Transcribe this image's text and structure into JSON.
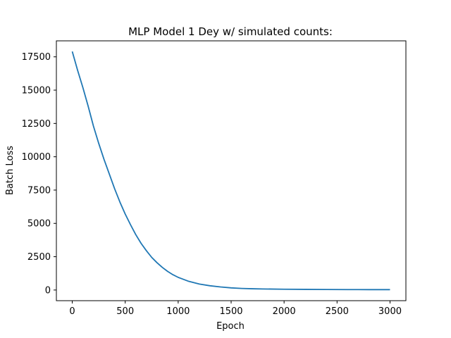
{
  "chart_data": {
    "type": "line",
    "title": "MLP Model 1 Dey w/ simulated counts:",
    "xlabel": "Epoch",
    "ylabel": "Batch Loss",
    "xlim": [
      -150,
      3150
    ],
    "ylim": [
      -800,
      18700
    ],
    "xticks": [
      0,
      500,
      1000,
      1500,
      2000,
      2500,
      3000
    ],
    "yticks": [
      0,
      2500,
      5000,
      7500,
      10000,
      12500,
      15000,
      17500
    ],
    "grid": false,
    "series": [
      {
        "color": "#1f77b4",
        "x": [
          0,
          50,
          100,
          150,
          200,
          250,
          300,
          350,
          400,
          450,
          500,
          550,
          600,
          650,
          700,
          750,
          800,
          850,
          900,
          950,
          1000,
          1100,
          1200,
          1300,
          1400,
          1500,
          1600,
          1700,
          1800,
          2000,
          2200,
          2400,
          2600,
          2800,
          3000
        ],
        "y": [
          17900,
          16500,
          15200,
          13800,
          12300,
          11000,
          9800,
          8700,
          7600,
          6600,
          5700,
          4900,
          4150,
          3500,
          2950,
          2450,
          2050,
          1700,
          1400,
          1150,
          950,
          650,
          450,
          320,
          230,
          160,
          120,
          95,
          80,
          60,
          48,
          40,
          34,
          30,
          28
        ]
      }
    ]
  }
}
